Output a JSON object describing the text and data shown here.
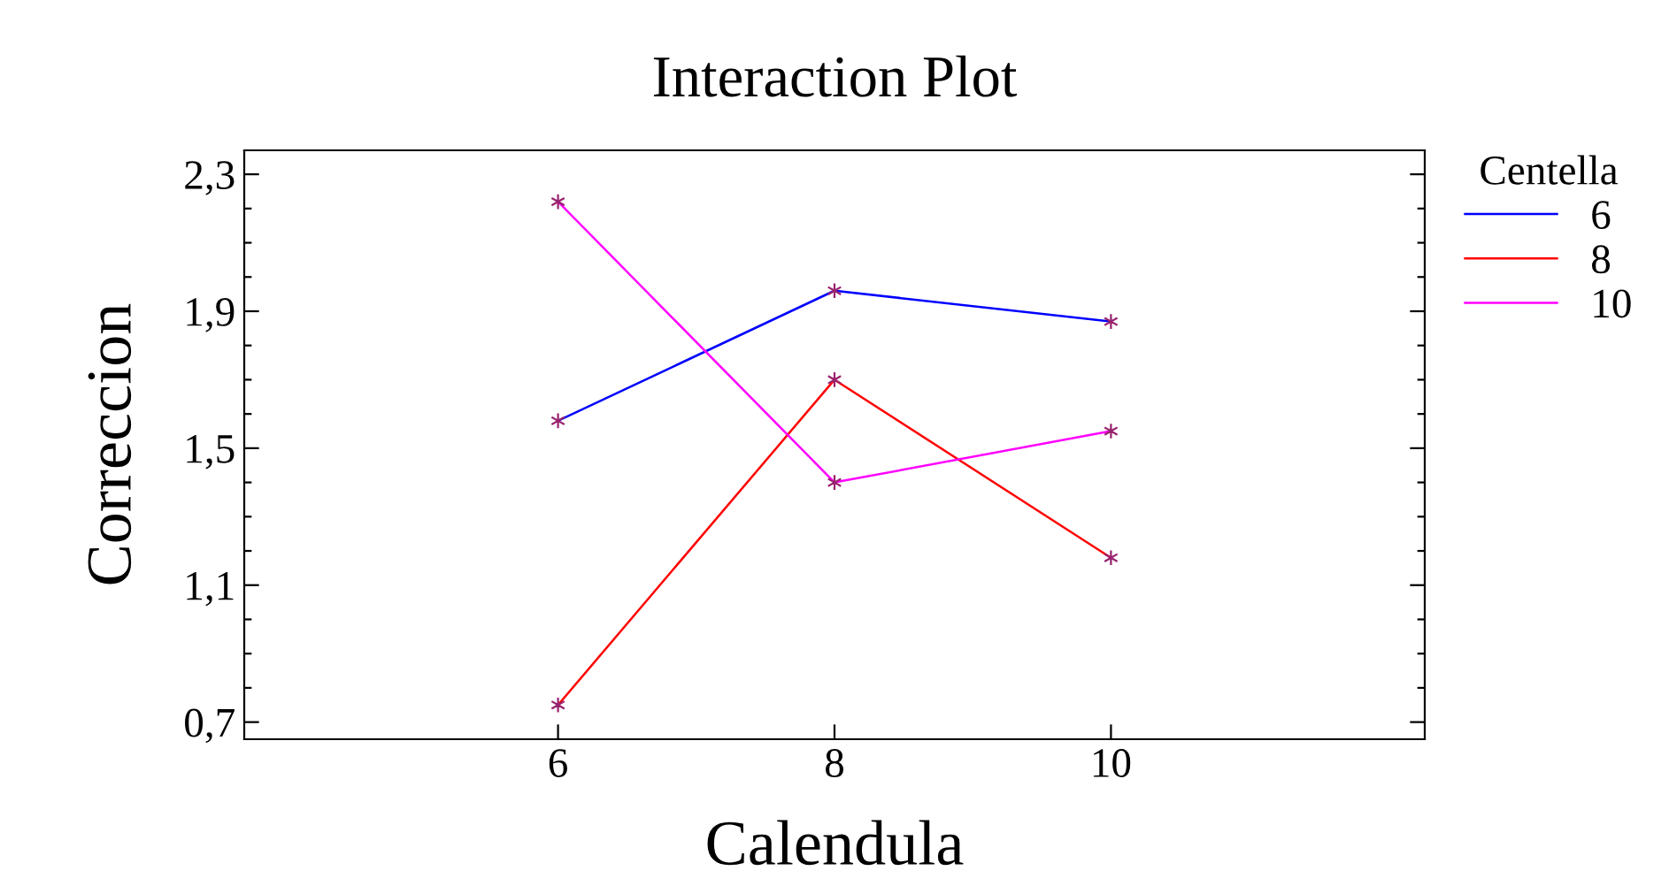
{
  "chart_data": {
    "type": "line",
    "title": "Interaction Plot",
    "xlabel": "Calendula",
    "ylabel": "Correccion",
    "legend_title": "Centella",
    "x": [
      6,
      8,
      10
    ],
    "series": [
      {
        "name": "6",
        "color": "#0000ff",
        "values": [
          1.58,
          1.96,
          1.87
        ]
      },
      {
        "name": "8",
        "color": "#ff0000",
        "values": [
          0.75,
          1.7,
          1.18
        ]
      },
      {
        "name": "10",
        "color": "#ff00ff",
        "values": [
          2.22,
          1.4,
          1.55
        ]
      }
    ],
    "xlim": [
      3.73,
      12.27
    ],
    "xticks": [
      6,
      8,
      10
    ],
    "ylim": [
      0.65,
      2.37
    ],
    "yticks": [
      {
        "value": 0.7,
        "label": "0,7"
      },
      {
        "value": 0.8,
        "label": null
      },
      {
        "value": 0.9,
        "label": null
      },
      {
        "value": 1.0,
        "label": null
      },
      {
        "value": 1.1,
        "label": "1,1"
      },
      {
        "value": 1.2,
        "label": null
      },
      {
        "value": 1.3,
        "label": null
      },
      {
        "value": 1.4,
        "label": null
      },
      {
        "value": 1.5,
        "label": "1,5"
      },
      {
        "value": 1.6,
        "label": null
      },
      {
        "value": 1.7,
        "label": null
      },
      {
        "value": 1.8,
        "label": null
      },
      {
        "value": 1.9,
        "label": "1,9"
      },
      {
        "value": 2.0,
        "label": null
      },
      {
        "value": 2.1,
        "label": null
      },
      {
        "value": 2.2,
        "label": null
      },
      {
        "value": 2.3,
        "label": "2,3"
      }
    ],
    "marker": "cross",
    "line_style": "solid",
    "grid": false,
    "legend": "right"
  }
}
